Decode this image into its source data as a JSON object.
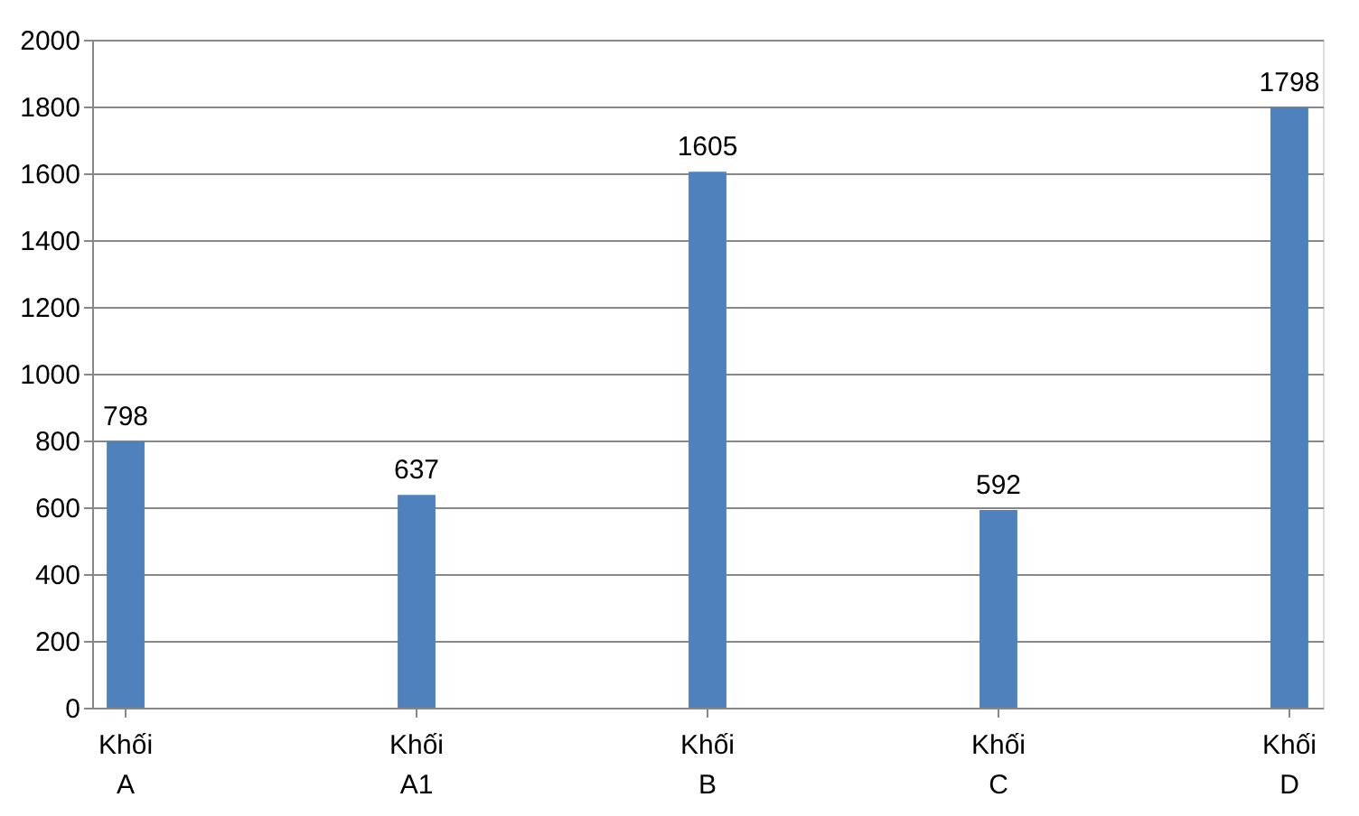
{
  "chart_data": {
    "type": "bar",
    "categories": [
      "Khối A",
      "Khối A1",
      "Khối B",
      "Khối C",
      "Khối D"
    ],
    "values": [
      798,
      637,
      1605,
      592,
      1798
    ],
    "color": "#4f81bd",
    "ylim": [
      0,
      2000
    ],
    "yticks": [
      0,
      200,
      400,
      600,
      800,
      1000,
      1200,
      1400,
      1600,
      1800,
      2000
    ],
    "grid": "y",
    "data_labels": true
  }
}
